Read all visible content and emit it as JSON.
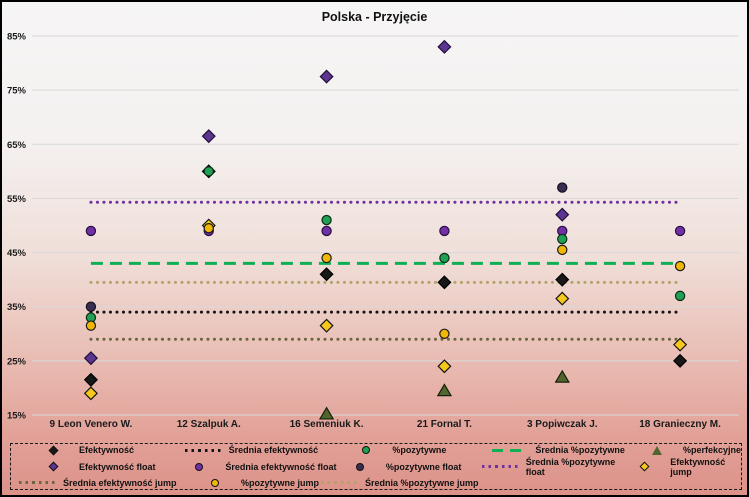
{
  "title": "Polska - Przyjęcie",
  "chart_data": {
    "type": "scatter",
    "categories": [
      "9 Leon Venero W.",
      "12 Szalpuk A.",
      "16 Semeniuk K.",
      "21 Fornal T.",
      "3 Popiwczak J.",
      "18 Granieczny M."
    ],
    "ylim": [
      15,
      85
    ],
    "y_ticks": [
      "15%",
      "25%",
      "35%",
      "45%",
      "55%",
      "65%",
      "75%",
      "85%"
    ],
    "y_tick_values": [
      15,
      25,
      35,
      45,
      55,
      65,
      75,
      85
    ],
    "grid": "horizontal",
    "legend_position": "bottom",
    "series": [
      {
        "id": "efektywnosc",
        "name": "Efektywność",
        "marker": "diamond",
        "fill": "#181818",
        "stroke": "#000000",
        "values": [
          21.5,
          60,
          41,
          39.5,
          40,
          25
        ]
      },
      {
        "id": "efektywnosc-float",
        "name": "Efektywność float",
        "marker": "diamond",
        "fill": "#5b3590",
        "stroke": "#201038",
        "values": [
          25.5,
          66.5,
          77.5,
          83,
          52,
          null
        ]
      },
      {
        "id": "efektywnosc-jump",
        "name": "Efektywność jump",
        "marker": "diamond",
        "fill": "#f6c71c",
        "stroke": "#141414",
        "values": [
          19,
          50,
          31.5,
          24,
          36.5,
          28
        ]
      },
      {
        "id": "pozytywne",
        "name": "%pozytywne",
        "marker": "circle",
        "fill": "#1fa055",
        "stroke": "#0c2b14",
        "values": [
          33,
          60,
          51,
          44,
          47.5,
          37
        ]
      },
      {
        "id": "pozytywne-float",
        "name": "%pozytywne float",
        "marker": "circle",
        "fill": "#3a2d52",
        "stroke": "#13101f",
        "values": [
          35,
          null,
          null,
          null,
          57,
          null
        ]
      },
      {
        "id": "pozytywne-jump",
        "name": "%pozytywne jump",
        "marker": "circle",
        "fill": "#f2b705",
        "stroke": "#1a1a1a",
        "values": [
          31.5,
          49.5,
          44,
          30,
          45.5,
          42.5
        ]
      },
      {
        "id": "perfekcyjne",
        "name": "%perfekcyjne",
        "marker": "triangle",
        "fill": "#51652f",
        "stroke": "#15200a",
        "values": [
          null,
          null,
          15.2,
          19.5,
          22,
          null
        ]
      },
      {
        "id": "srednia-efektywnosc-float",
        "name": "Średnia efektywność float",
        "marker": "circle",
        "fill": "#7130a6",
        "stroke": "#260e40",
        "values": [
          49,
          49,
          49,
          49,
          49,
          49
        ]
      }
    ],
    "avg_lines": [
      {
        "id": "srednia-efektywnosc",
        "name": "Średnia efektywność",
        "style": "dotted",
        "color": "#141414",
        "value": 34
      },
      {
        "id": "srednia-pozytywne",
        "name": "Średnia %pozytywne",
        "style": "dashed",
        "color": "#0faf54",
        "value": 43
      },
      {
        "id": "srednia-pozytywne-float",
        "name": "Średnia %pozytywne float",
        "style": "dotted",
        "color": "#7030a0",
        "value": 54.3
      },
      {
        "id": "srednia-pozytywne-jump",
        "name": "Średnia %pozytywne jump",
        "style": "dotted",
        "color": "#b3a269",
        "value": 39.5
      },
      {
        "id": "srednia-efektywnosc-jump",
        "name": "Średnia efektywność jump",
        "style": "dotted",
        "color": "#6a663f",
        "value": 29
      }
    ]
  },
  "legend": {
    "rows": [
      [
        {
          "id": "efektywnosc",
          "label": "Efektywność",
          "glyph": "diamond",
          "color": "#181818"
        },
        {
          "id": "srednia-efektywnosc",
          "label": "Średnia efektywność",
          "glyph": "dotline",
          "color": "#141414"
        },
        {
          "id": "pozytywne",
          "label": "%pozytywne",
          "glyph": "circle",
          "color": "#1fa055"
        },
        {
          "id": "srednia-pozytywne",
          "label": "Średnia %pozytywne",
          "glyph": "dashline",
          "color": "#0faf54"
        },
        {
          "id": "perfekcyjne",
          "label": "%perfekcyjne",
          "glyph": "triangle",
          "color": "#51652f"
        }
      ],
      [
        {
          "id": "efektywnosc-float",
          "label": "Efektywność float",
          "glyph": "diamond",
          "color": "#5b3590"
        },
        {
          "id": "srednia-efektywnosc-float",
          "label": "Średnia efektywność float",
          "glyph": "circle",
          "color": "#7130a6"
        },
        {
          "id": "pozytywne-float",
          "label": "%pozytywne float",
          "glyph": "circle",
          "color": "#3a2d52"
        },
        {
          "id": "srednia-pozytywne-float",
          "label": "Średnia %pozytywne float",
          "glyph": "dotline",
          "color": "#7030a0"
        },
        {
          "id": "efektywnosc-jump",
          "label": "Efektywność jump",
          "glyph": "diamond",
          "color": "#f6c71c"
        }
      ],
      [
        {
          "id": "srednia-efektywnosc-jump",
          "label": "Średnia efektywność jump",
          "glyph": "dotline",
          "color": "#6a663f"
        },
        {
          "id": "pozytywne-jump",
          "label": "%pozytywne jump",
          "glyph": "circle",
          "color": "#f2b705"
        },
        {
          "id": "srednia-pozytywne-jump",
          "label": "Średnia %pozytywne jump",
          "glyph": "dotline",
          "color": "#b3a269"
        }
      ]
    ]
  }
}
